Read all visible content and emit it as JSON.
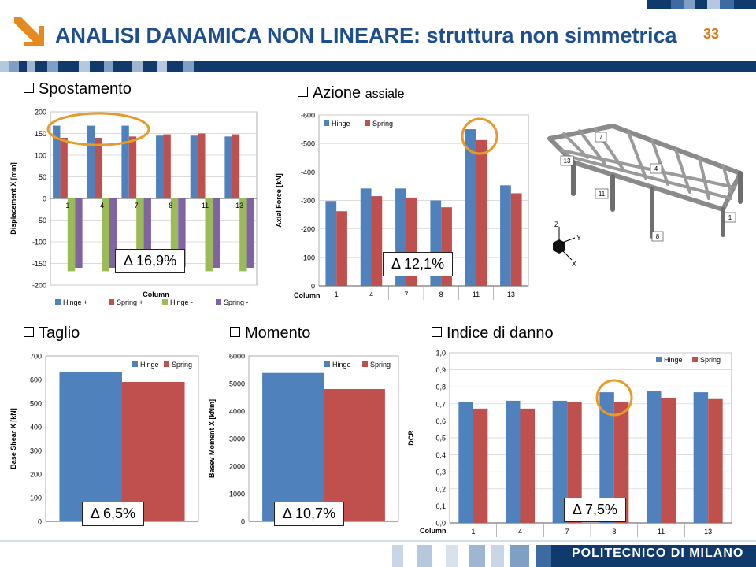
{
  "header": {
    "title": "ANALISI DANAMICA NON LINEARE: struttura non simmetrica",
    "page_number": "33",
    "footer": "POLITECNICO DI MILANO",
    "logo_icon": "arrow-down-right-icon",
    "colors": {
      "title": "#1f4e8c",
      "accent": "#e58a1f",
      "band": "#0f3a6b"
    }
  },
  "sections": {
    "spostamento": "Spostamento",
    "azione": "Azione",
    "azione_small": "assiale",
    "taglio": "Taglio",
    "momento": "Momento",
    "indice": "Indice di danno"
  },
  "deltas": {
    "spostamento": "Δ 16,9%",
    "azione": "Δ 12,1%",
    "taglio": "Δ 6,5%",
    "momento": "Δ 10,7%",
    "indice": "Δ 7,5%"
  },
  "model3d": {
    "labels": [
      "7",
      "13",
      "4",
      "11",
      "1",
      "8"
    ],
    "axes": [
      "Z",
      "Y",
      "X"
    ]
  },
  "chart_data": [
    {
      "id": "displacement",
      "type": "bar",
      "categories": [
        "1",
        "4",
        "7",
        "8",
        "11",
        "13"
      ],
      "ylabel": "Displacement X [mm]",
      "xlabel": "Column",
      "ylim": [
        -200,
        200
      ],
      "yticks": [
        200,
        150,
        100,
        50,
        0,
        -50,
        -100,
        -150,
        -200
      ],
      "grid": true,
      "legend": "bottom",
      "series": [
        {
          "name": "Hinge +",
          "color": "#4f81bd",
          "values": [
            168,
            168,
            168,
            145,
            145,
            143
          ]
        },
        {
          "name": "Spring +",
          "color": "#c0504d",
          "values": [
            140,
            140,
            143,
            148,
            150,
            148
          ]
        },
        {
          "name": "Hinge -",
          "color": "#9bbb59",
          "values": [
            -168,
            -168,
            -168,
            -160,
            -168,
            -168
          ]
        },
        {
          "name": "Spring -",
          "color": "#8064a2",
          "values": [
            -160,
            -160,
            -160,
            -158,
            -160,
            -160
          ]
        }
      ]
    },
    {
      "id": "axial",
      "type": "bar",
      "categories": [
        "1",
        "4",
        "7",
        "8",
        "11",
        "13"
      ],
      "ylabel": "Axial Force [kN]",
      "xlabel": "Column",
      "ylim": [
        0,
        -600
      ],
      "yticks": [
        -600,
        -500,
        -400,
        -300,
        -200,
        -100,
        0
      ],
      "grid": true,
      "legend": "top-left",
      "series": [
        {
          "name": "Hinge",
          "color": "#4f81bd",
          "values": [
            -298,
            -342,
            -342,
            -300,
            -550,
            -353
          ]
        },
        {
          "name": "Spring",
          "color": "#c0504d",
          "values": [
            -262,
            -315,
            -310,
            -276,
            -512,
            -325
          ]
        }
      ]
    },
    {
      "id": "shear",
      "type": "bar",
      "categories": [
        ""
      ],
      "ylabel": "Base Shear X [kN]",
      "ylim": [
        0,
        700
      ],
      "yticks": [
        700,
        600,
        500,
        400,
        300,
        200,
        100,
        0
      ],
      "grid": false,
      "legend": "top-right",
      "series": [
        {
          "name": "Hinge",
          "color": "#4f81bd",
          "values": [
            630
          ]
        },
        {
          "name": "Spring",
          "color": "#c0504d",
          "values": [
            590
          ]
        }
      ]
    },
    {
      "id": "moment",
      "type": "bar",
      "categories": [
        ""
      ],
      "ylabel": "Basev Moment X [kNm]",
      "ylim": [
        0,
        6000
      ],
      "yticks": [
        6000,
        5000,
        4000,
        3000,
        2000,
        1000,
        0
      ],
      "grid": false,
      "legend": "top-right",
      "series": [
        {
          "name": "Hinge",
          "color": "#4f81bd",
          "values": [
            5380
          ]
        },
        {
          "name": "Spring",
          "color": "#c0504d",
          "values": [
            4800
          ]
        }
      ]
    },
    {
      "id": "dcr",
      "type": "bar",
      "categories": [
        "1",
        "4",
        "7",
        "8",
        "11",
        "13"
      ],
      "ylabel": "DCR",
      "xlabel": "Column",
      "ylim": [
        0,
        1
      ],
      "yticks": [
        "1,0",
        "0,9",
        "0,8",
        "0,7",
        "0,6",
        "0,5",
        "0,4",
        "0,3",
        "0,2",
        "0,1",
        "0,0"
      ],
      "grid": true,
      "legend": "top-right",
      "series": [
        {
          "name": "Hinge",
          "color": "#4f81bd",
          "values": [
            0.713,
            0.718,
            0.718,
            0.768,
            0.773,
            0.768
          ]
        },
        {
          "name": "Spring",
          "color": "#c0504d",
          "values": [
            0.672,
            0.672,
            0.713,
            0.713,
            0.733,
            0.728
          ]
        }
      ]
    }
  ]
}
